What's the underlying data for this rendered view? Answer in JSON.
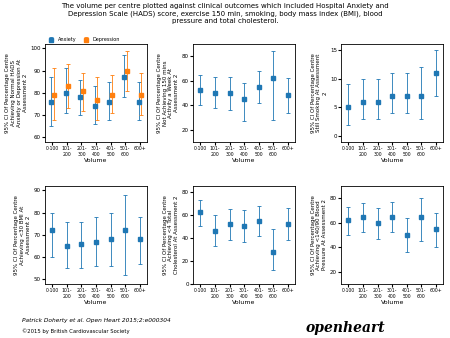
{
  "title": "The volume per centre plotted against clinical outcomes which included Hospital Anxiety and\nDepression Scale (HADS) score, exercise 150 min, smoking, body mass index (BMI), blood\npressure and total cholesterol.",
  "annotations": [
    "Patrick Doherty et al. Open Heart 2015;2:e000304",
    "©2015 by British Cardiovascular Society",
    "openheart"
  ],
  "chart_data": [
    {
      "type": "errorbar",
      "xlabel": "Volume",
      "ylabel": "95% CI Of Percentage Centre\nAchieving Normal HADS\nAnxiety or Depression At\nAssessment 2",
      "categories": [
        "0-100",
        "101-\n200",
        "201-\n300",
        "301-\n400",
        "401-\n500",
        "501-\n600",
        "600+"
      ],
      "ylim": [
        58,
        102
      ],
      "yticks": [
        60,
        70,
        80,
        90,
        100
      ],
      "legend": "upper left",
      "series": [
        {
          "name": "Anxiety",
          "marker": "square",
          "values": [
            76,
            80,
            78,
            74,
            76,
            87,
            76
          ],
          "ci_low": [
            65,
            71,
            70,
            66,
            68,
            78,
            68
          ],
          "ci_high": [
            87,
            91,
            86,
            83,
            85,
            97,
            85
          ]
        },
        {
          "name": "Depression",
          "marker": "square",
          "values": [
            79,
            83,
            81,
            77,
            79,
            90,
            79
          ],
          "ci_low": [
            68,
            73,
            72,
            68,
            71,
            81,
            70
          ],
          "ci_high": [
            91,
            93,
            89,
            87,
            88,
            99,
            89
          ]
        }
      ]
    },
    {
      "type": "errorbar",
      "xlabel": "Volume",
      "ylabel": "95% CI Of Percentage Centre\nNot Achieving 150 mins\nActivity a Week At\nAssessment 2",
      "categories": [
        "0-100",
        "101-\n200",
        "201-\n300",
        "301-\n400",
        "401-\n500",
        "501-\n600",
        "600+"
      ],
      "ylim": [
        10,
        90
      ],
      "yticks": [
        20,
        40,
        60,
        80
      ],
      "series": [
        {
          "marker": "square",
          "values": [
            52,
            50,
            50,
            45,
            55,
            62,
            48
          ],
          "ci_low": [
            40,
            38,
            36,
            27,
            42,
            28,
            34
          ],
          "ci_high": [
            65,
            63,
            63,
            58,
            68,
            84,
            62
          ]
        }
      ]
    },
    {
      "type": "errorbar",
      "xlabel": "Volume",
      "ylabel": "95% CI Of Percentage Centre\nStill Smoking At Assessment\n2",
      "categories": [
        "0-100",
        "101-\n200",
        "201-\n300",
        "301-\n400",
        "401-\n500",
        "501-\n600",
        "600+"
      ],
      "ylim": [
        -1,
        16
      ],
      "yticks": [
        0,
        5,
        10,
        15
      ],
      "series": [
        {
          "marker": "square",
          "values": [
            5,
            6,
            6,
            7,
            7,
            7,
            11
          ],
          "ci_low": [
            2,
            3,
            3,
            4,
            4,
            3,
            7
          ],
          "ci_high": [
            9,
            10,
            10,
            11,
            11,
            12,
            15
          ]
        }
      ]
    },
    {
      "type": "errorbar",
      "xlabel": "Volume",
      "ylabel": "95% CI Of Percentage Centre\nAchieving <30 BMI At\nAssessment 2",
      "categories": [
        "0-100",
        "101-\n200",
        "201-\n300",
        "301-\n400",
        "401-\n500",
        "501-\n600",
        "600+"
      ],
      "ylim": [
        48,
        92
      ],
      "yticks": [
        50,
        60,
        70,
        80,
        90
      ],
      "series": [
        {
          "marker": "square",
          "values": [
            72,
            65,
            66,
            67,
            68,
            72,
            68
          ],
          "ci_low": [
            60,
            55,
            55,
            56,
            56,
            52,
            57
          ],
          "ci_high": [
            80,
            76,
            76,
            78,
            80,
            88,
            78
          ]
        }
      ]
    },
    {
      "type": "errorbar",
      "xlabel": "Volume",
      "ylabel": "95% CI Of Percentage Centre\nAchieving <4 Total\nCholesterol At Assessment 2",
      "categories": [
        "0-100",
        "101-\n200",
        "201-\n300",
        "301-\n400",
        "401-\n500",
        "501-\n600",
        "600+"
      ],
      "ylim": [
        0,
        85
      ],
      "yticks": [
        0,
        20,
        40,
        60,
        80
      ],
      "series": [
        {
          "marker": "square",
          "values": [
            62,
            46,
            52,
            50,
            55,
            28,
            52
          ],
          "ci_low": [
            50,
            33,
            38,
            36,
            42,
            12,
            38
          ],
          "ci_high": [
            73,
            60,
            65,
            64,
            68,
            48,
            66
          ]
        }
      ]
    },
    {
      "type": "errorbar",
      "xlabel": "Volume",
      "ylabel": "95% CI Of Percentage Centre\nAchieving <140/90 Blood\nPressure At Assessment 2",
      "categories": [
        "0-100",
        "101-\n200",
        "201-\n300",
        "301-\n400",
        "401-\n500",
        "501-\n600",
        "600+"
      ],
      "ylim": [
        10,
        90
      ],
      "yticks": [
        20,
        40,
        60,
        80
      ],
      "series": [
        {
          "marker": "square",
          "values": [
            62,
            65,
            60,
            65,
            50,
            65,
            55
          ],
          "ci_low": [
            50,
            52,
            47,
            52,
            36,
            45,
            40
          ],
          "ci_high": [
            73,
            76,
            72,
            77,
            64,
            80,
            68
          ]
        }
      ]
    }
  ]
}
